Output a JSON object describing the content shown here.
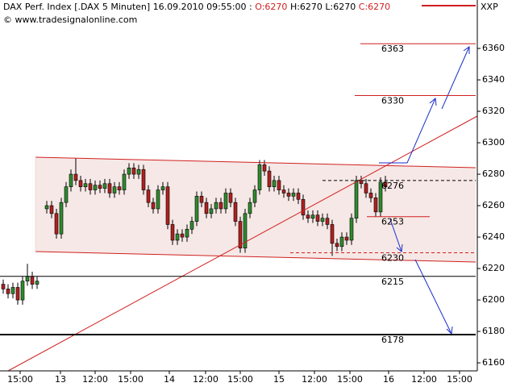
{
  "chart_data": {
    "type": "candlestick",
    "title": "DAX Perf. Index [.DAX  5 Minuten]",
    "datetime": "16.09.2010 09:55:00 :",
    "quote": [
      "O:6270",
      "H:6270",
      "L:6270",
      "C:6270"
    ],
    "source": "© www.tradesignalonline.com",
    "axis_label": "XXP",
    "up_color": "#2e8b2e",
    "down_color": "#b02020",
    "x": [
      0,
      1,
      2,
      3,
      4,
      5,
      6,
      7,
      9,
      10,
      11,
      12,
      13,
      14,
      15,
      16,
      17,
      18,
      19,
      20,
      21,
      22,
      23,
      24,
      25,
      26,
      27,
      28,
      29,
      30,
      31,
      32,
      33,
      34,
      35,
      36,
      37,
      38,
      39,
      40,
      41,
      42,
      43,
      44,
      45,
      46,
      47,
      48,
      49,
      50,
      51,
      52,
      53,
      54,
      55,
      56,
      57,
      58,
      59,
      60,
      61,
      62,
      63,
      64,
      65,
      66,
      67,
      68,
      69,
      70,
      71,
      72,
      73,
      74,
      75,
      76,
      77,
      78,
      79
    ],
    "open": [
      6210,
      6207,
      6204,
      6208,
      6200,
      6212,
      6215,
      6210,
      6258,
      6260,
      6255,
      6242,
      6262,
      6272,
      6280,
      6276,
      6272,
      6274,
      6270,
      6273,
      6271,
      6274,
      6268,
      6272,
      6270,
      6280,
      6284,
      6280,
      6283,
      6270,
      6262,
      6258,
      6270,
      6272,
      6248,
      6238,
      6242,
      6240,
      6245,
      6250,
      6266,
      6262,
      6255,
      6258,
      6262,
      6258,
      6268,
      6262,
      6250,
      6233,
      6255,
      6262,
      6270,
      6286,
      6282,
      6272,
      6276,
      6270,
      6268,
      6266,
      6268,
      6264,
      6254,
      6252,
      6254,
      6250,
      6252,
      6248,
      6236,
      6234,
      6240,
      6238,
      6252,
      6276,
      6274,
      6268,
      6265,
      6256,
      6275
    ],
    "high": [
      6213,
      6210,
      6211,
      6211,
      6215,
      6223,
      6218,
      6215,
      6263,
      6263,
      6258,
      6265,
      6275,
      6283,
      6290,
      6279,
      6277,
      6277,
      6276,
      6276,
      6277,
      6277,
      6275,
      6275,
      6283,
      6287,
      6287,
      6286,
      6286,
      6273,
      6265,
      6273,
      6275,
      6275,
      6251,
      6245,
      6245,
      6248,
      6253,
      6269,
      6269,
      6265,
      6261,
      6265,
      6265,
      6271,
      6271,
      6265,
      6253,
      6258,
      6265,
      6273,
      6289,
      6289,
      6285,
      6279,
      6279,
      6273,
      6271,
      6271,
      6271,
      6267,
      6257,
      6257,
      6257,
      6255,
      6255,
      6251,
      6239,
      6243,
      6243,
      6255,
      6279,
      6279,
      6277,
      6271,
      6268,
      6278,
      6279
    ],
    "low": [
      6204,
      6201,
      6201,
      6197,
      6197,
      6209,
      6207,
      6207,
      6255,
      6252,
      6239,
      6239,
      6259,
      6269,
      6273,
      6269,
      6269,
      6267,
      6267,
      6268,
      6268,
      6265,
      6265,
      6267,
      6267,
      6277,
      6277,
      6277,
      6267,
      6259,
      6255,
      6255,
      6267,
      6245,
      6235,
      6235,
      6237,
      6237,
      6242,
      6247,
      6259,
      6252,
      6252,
      6255,
      6255,
      6255,
      6259,
      6247,
      6230,
      6230,
      6252,
      6259,
      6267,
      6279,
      6269,
      6269,
      6267,
      6265,
      6263,
      6263,
      6261,
      6251,
      6249,
      6249,
      6247,
      6247,
      6245,
      6228,
      6231,
      6231,
      6235,
      6235,
      6249,
      6271,
      6265,
      6262,
      6253,
      6253,
      6269
    ],
    "close": [
      6207,
      6204,
      6208,
      6200,
      6212,
      6215,
      6210,
      6212,
      6260,
      6255,
      6242,
      6262,
      6272,
      6280,
      6276,
      6272,
      6274,
      6270,
      6273,
      6271,
      6274,
      6268,
      6272,
      6270,
      6280,
      6284,
      6280,
      6283,
      6270,
      6262,
      6258,
      6270,
      6272,
      6248,
      6238,
      6242,
      6240,
      6245,
      6250,
      6266,
      6262,
      6255,
      6258,
      6262,
      6258,
      6268,
      6262,
      6250,
      6233,
      6255,
      6262,
      6270,
      6286,
      6282,
      6272,
      6276,
      6270,
      6268,
      6266,
      6268,
      6264,
      6254,
      6252,
      6254,
      6250,
      6252,
      6248,
      6236,
      6234,
      6240,
      6238,
      6252,
      6276,
      6274,
      6268,
      6265,
      6256,
      6275,
      6272
    ],
    "levels": [
      6363,
      6330,
      6276,
      6253,
      6230,
      6215,
      6178
    ],
    "xlim": [
      -0.667,
      98
    ],
    "xticks": [
      {
        "value": 3.5,
        "label": "15:00"
      },
      {
        "value": 11.83,
        "label": "13"
      },
      {
        "value": 19,
        "label": "12:00"
      },
      {
        "value": 26.33,
        "label": "15:00"
      },
      {
        "value": 34.33,
        "label": "14"
      },
      {
        "value": 41.83,
        "label": "12:00"
      },
      {
        "value": 49,
        "label": "15:00"
      },
      {
        "value": 57,
        "label": "15"
      },
      {
        "value": 64.33,
        "label": "12:00"
      },
      {
        "value": 71.67,
        "label": "15:00"
      },
      {
        "value": 79.67,
        "label": "16"
      },
      {
        "value": 87,
        "label": "12:00"
      },
      {
        "value": 94.33,
        "label": "15:00"
      }
    ],
    "ylim": [
      6154.9,
      6390.8
    ],
    "yticks": [
      6160,
      6180,
      6200,
      6220,
      6240,
      6260,
      6280,
      6300,
      6320,
      6340,
      6360
    ]
  }
}
